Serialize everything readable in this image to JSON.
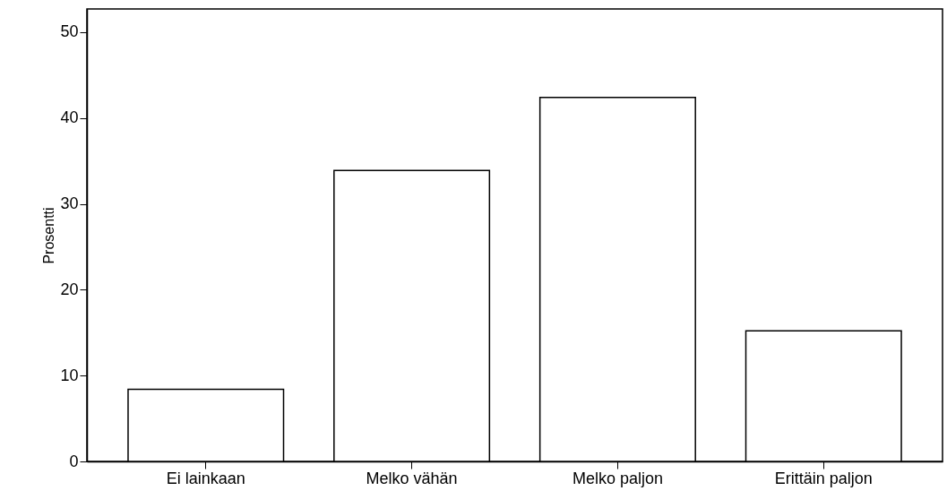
{
  "chart_data": {
    "type": "bar",
    "ylabel": "Prosentti",
    "categories": [
      "Ei lainkaan",
      "Melko vähän",
      "Melko paljon",
      "Erittäin paljon"
    ],
    "values": [
      8.4,
      33.9,
      42.4,
      15.2
    ],
    "color": "#ffffff",
    "ylim": [
      0,
      52.7
    ],
    "yticks": [
      0,
      10,
      20,
      30,
      40,
      50
    ],
    "grid": false
  }
}
